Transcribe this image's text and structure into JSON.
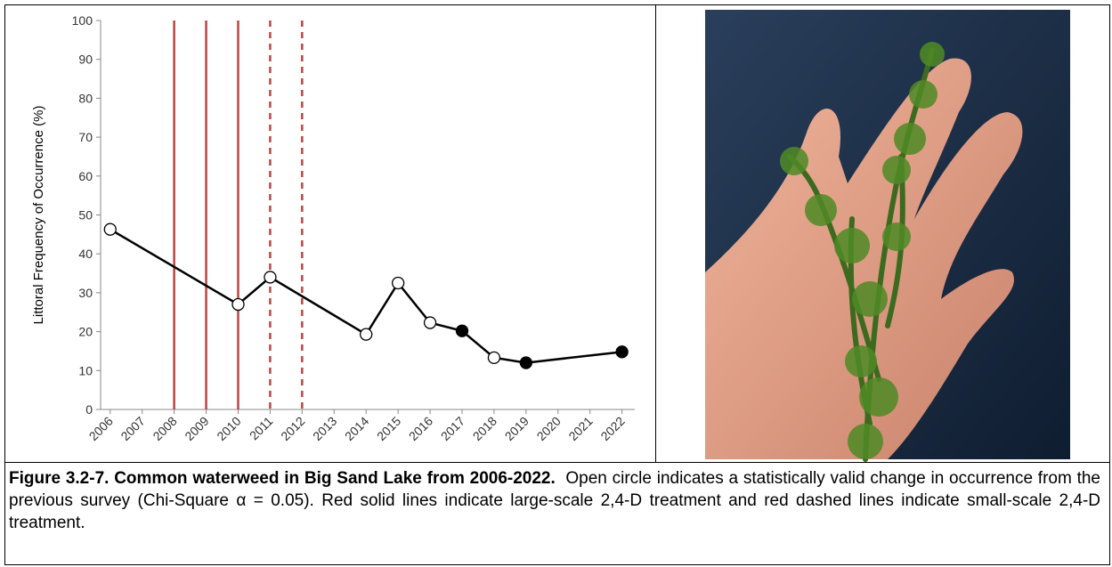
{
  "chart_data": {
    "type": "line",
    "y_label": "Littoral Frequency of Occurrence (%)",
    "x": [
      2006,
      2010,
      2011,
      2014,
      2015,
      2016,
      2017,
      2018,
      2019,
      2022
    ],
    "values": [
      46.3,
      27,
      34,
      19.3,
      32.5,
      22.3,
      20.2,
      13.3,
      12,
      14.8
    ],
    "filled": [
      false,
      false,
      false,
      false,
      false,
      false,
      true,
      false,
      true,
      true
    ],
    "color": "#000000",
    "xlim": [
      2005.7,
      2022.4
    ],
    "xticks": [
      2006,
      2007,
      2008,
      2009,
      2010,
      2011,
      2012,
      2013,
      2014,
      2015,
      2016,
      2017,
      2018,
      2019,
      2020,
      2021,
      2022
    ],
    "ylim": [
      0,
      100
    ],
    "yticks": [
      0,
      10,
      20,
      30,
      40,
      50,
      60,
      70,
      80,
      90,
      100
    ],
    "solid_lines": [
      2008,
      2009,
      2010
    ],
    "dashed_lines": [
      2011,
      2012
    ],
    "treatment_color": "#c0453d"
  },
  "caption": {
    "title": "Figure 3.2-7.  Common waterweed in Big Sand Lake from 2006-2022.",
    "text": "Open circle indicates a statistically valid change in occurrence from the previous survey (Chi-Square α = 0.05).  Red solid lines indicate large-scale 2,4-D treatment and red dashed lines indicate small-scale 2,4-D treatment."
  }
}
